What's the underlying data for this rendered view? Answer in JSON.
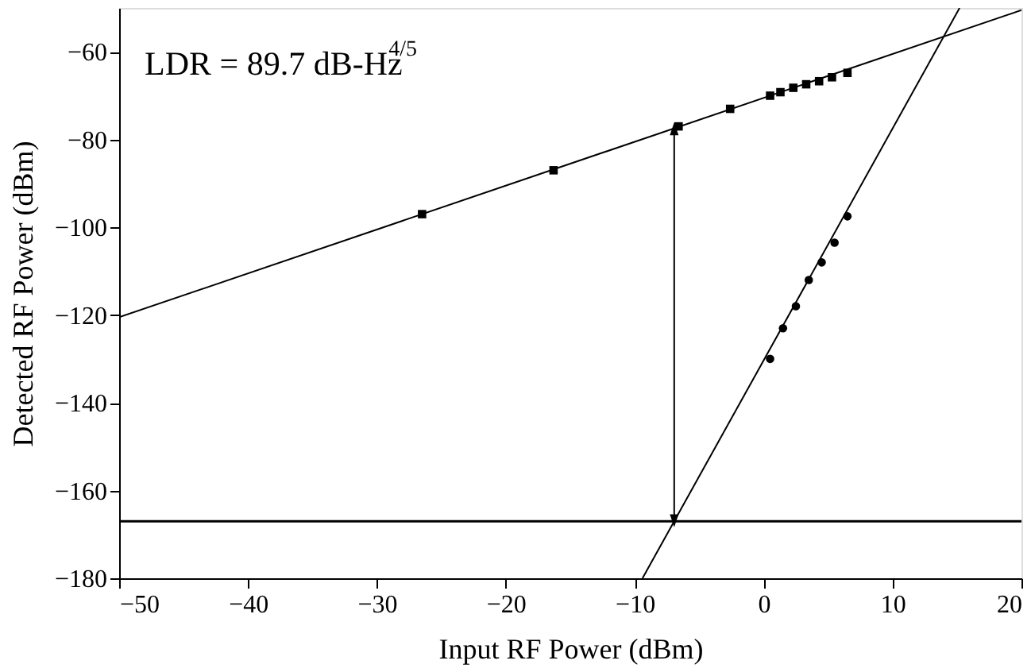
{
  "chart_data": {
    "type": "scatter",
    "xlabel": "Input RF Power (dBm)",
    "ylabel": "Detected RF Power (dBm)",
    "xlim": [
      -50,
      20
    ],
    "ylim": [
      -180,
      -50
    ],
    "xticks": [
      -50,
      -40,
      -30,
      -20,
      -10,
      0,
      10,
      20
    ],
    "yticks": [
      -180,
      -160,
      -140,
      -120,
      -100,
      -80,
      -60
    ],
    "grid": false,
    "series": [
      {
        "type": "line",
        "color": "#000000",
        "marker": "none",
        "x": [
          -50,
          20
        ],
        "values": [
          -120.5,
          -50.5
        ]
      },
      {
        "type": "line",
        "color": "#000000",
        "marker": "none",
        "x": [
          -9.4,
          15.2
        ],
        "values": [
          -180,
          -50
        ]
      },
      {
        "color": "#000000",
        "marker": "square",
        "x": [
          -26.5,
          -16.3,
          -6.6,
          -2.6,
          0.5,
          1.3,
          2.3,
          3.3,
          4.3,
          5.3,
          6.5
        ],
        "values": [
          -97,
          -87,
          -77,
          -73,
          -70,
          -69.2,
          -68.2,
          -67.4,
          -66.7,
          -65.8,
          -64.8
        ]
      },
      {
        "color": "#000000",
        "marker": "circle",
        "x": [
          0.5,
          1.5,
          2.5,
          3.5,
          4.5,
          5.5,
          6.5
        ],
        "values": [
          -130,
          -123,
          -118,
          -112,
          -108,
          -103.5,
          -97.5
        ]
      }
    ],
    "ref_lines": [
      {
        "axis": "y",
        "value": -167,
        "color": "#000000"
      }
    ],
    "annotations": [
      "LDR = 89.7 dB-Hz$^{4/5}$"
    ]
  }
}
